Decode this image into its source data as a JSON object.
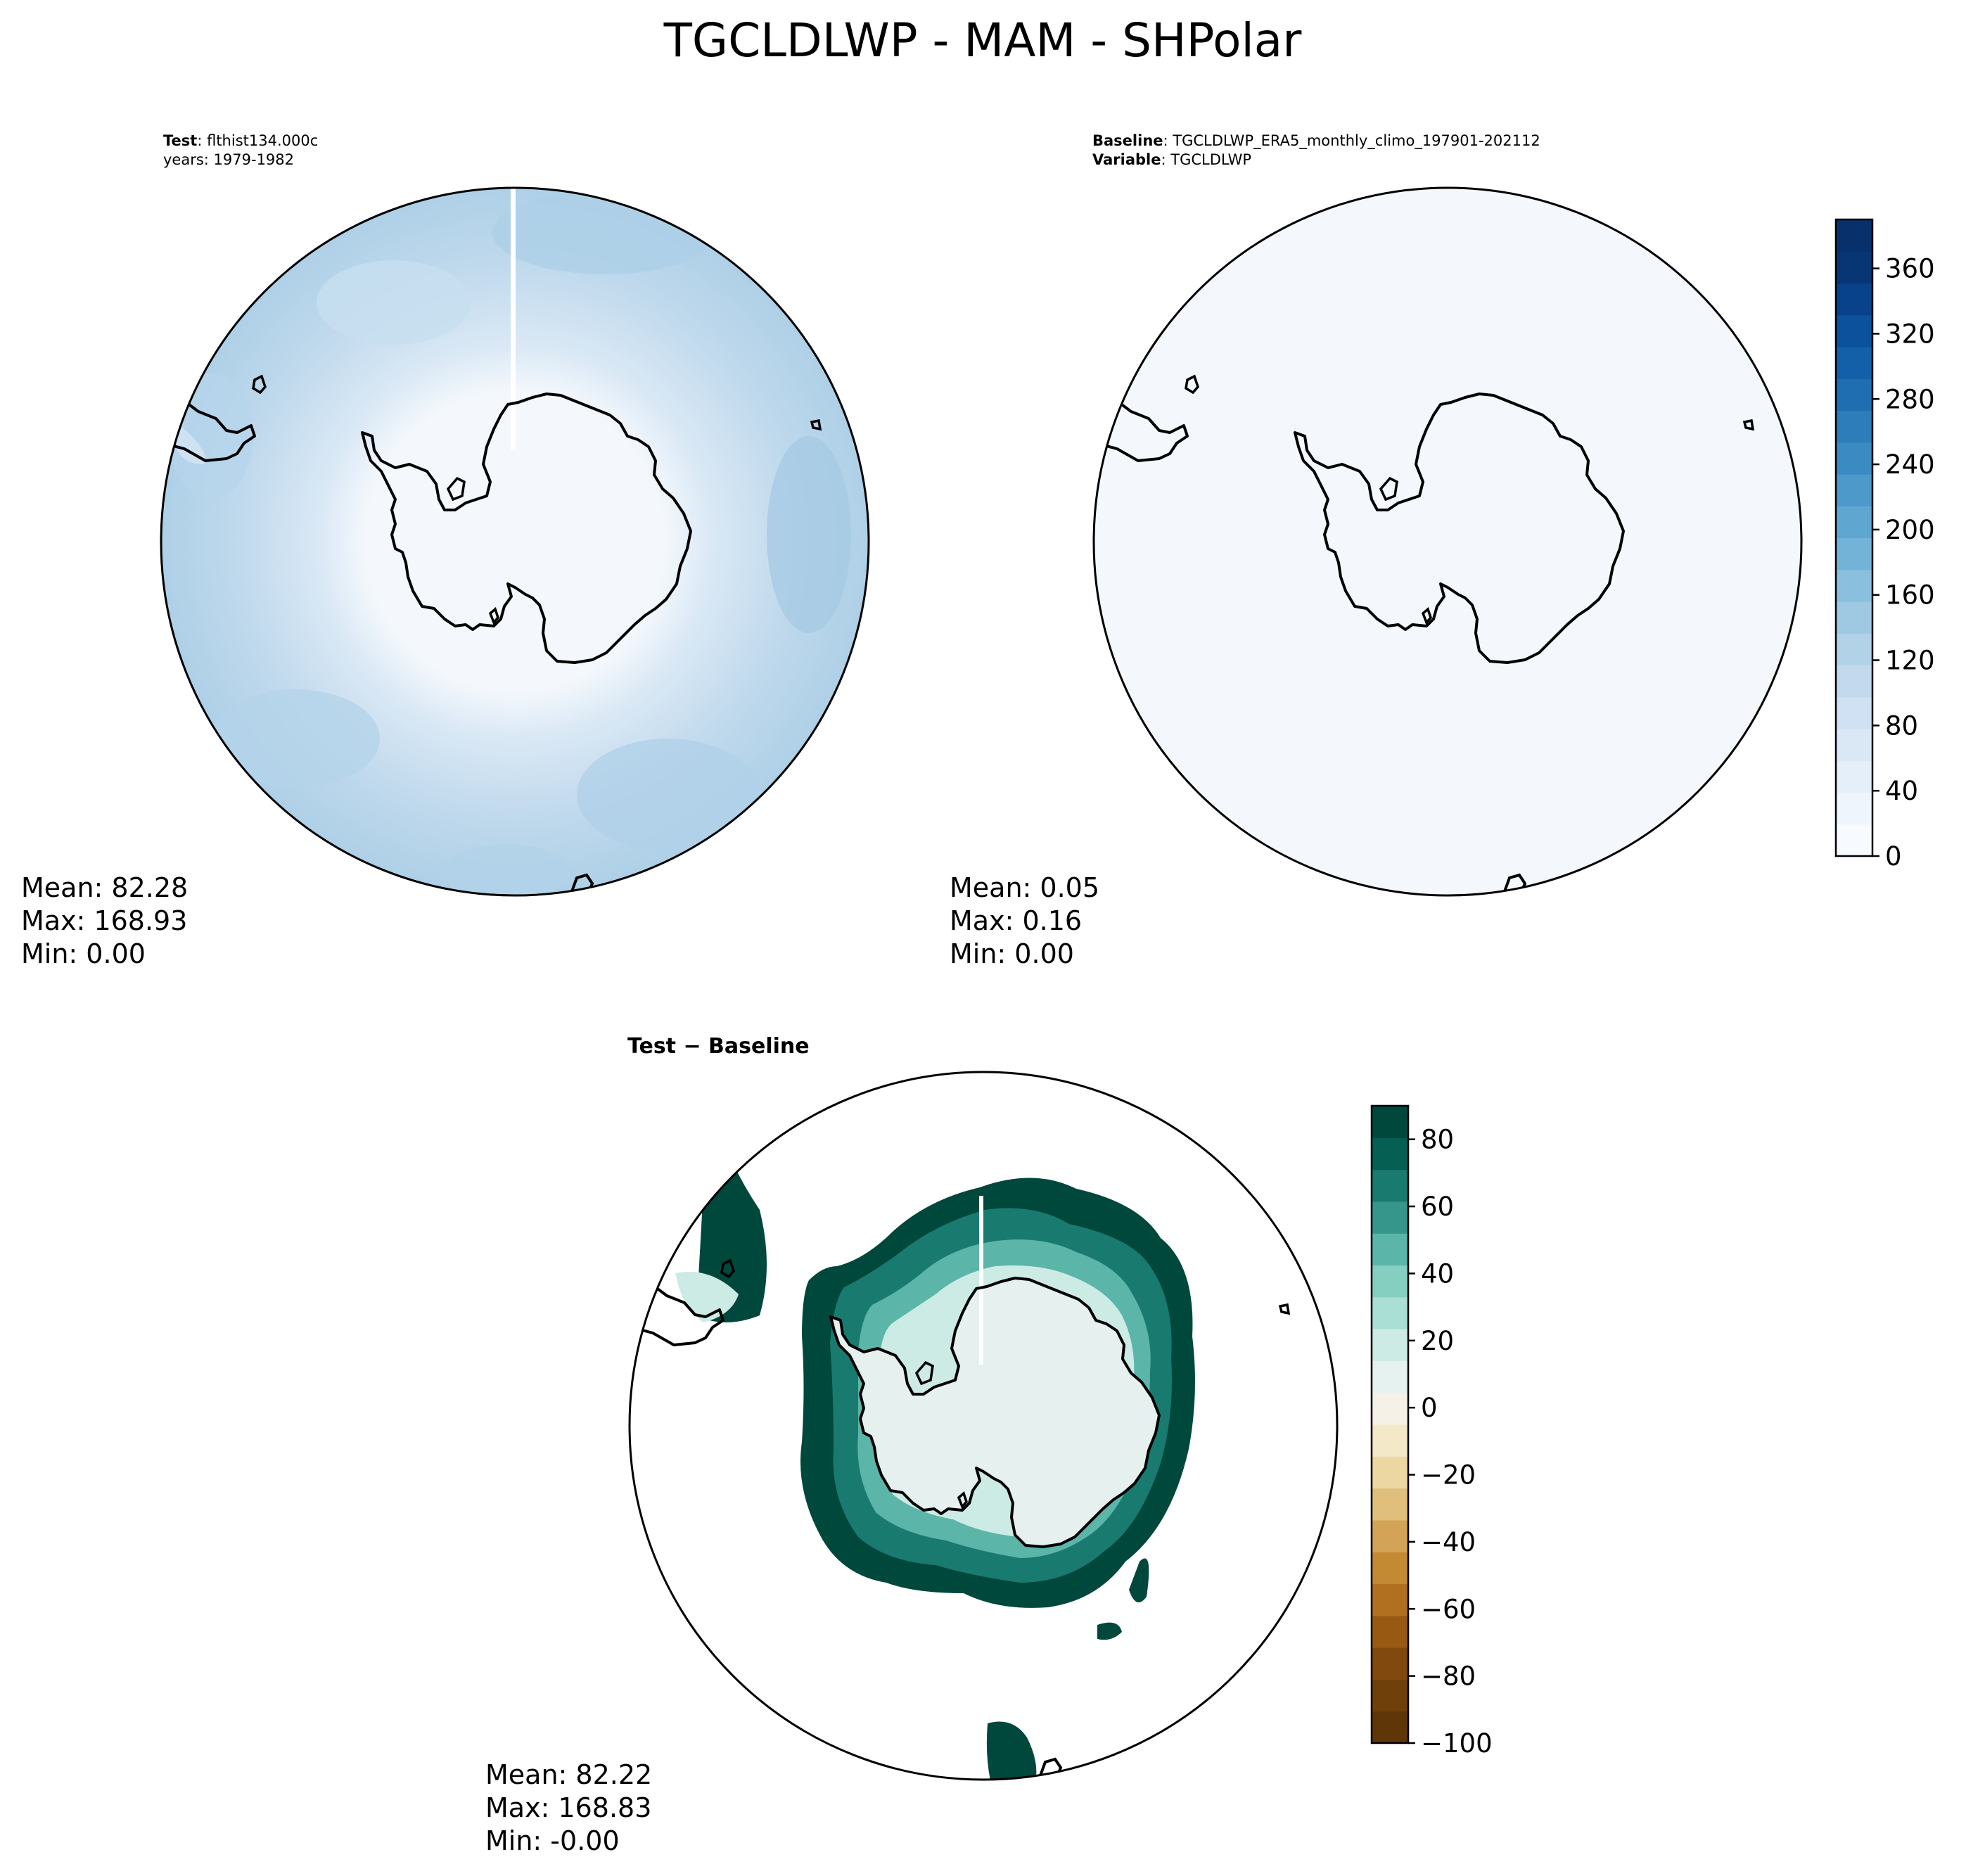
{
  "figure": {
    "title": "TGCLDLWP - MAM - SHPolar"
  },
  "panels": {
    "test": {
      "header": {
        "key": "Test",
        "value": "flthist134.000c",
        "line2": "years: 1979-1982"
      },
      "stats": {
        "mean": "Mean: 82.28",
        "max": "Max: 168.93",
        "min": "Min:  0.00"
      },
      "fill_color": "#bdd7ec"
    },
    "baseline": {
      "header": {
        "key": "Baseline",
        "value": "TGCLDLWP_ERA5_monthly_climo_197901-202112",
        "key2": "Variable",
        "value2": "TGCLDLWP"
      },
      "stats": {
        "mean": "Mean:  0.05",
        "max": "Max:  0.16",
        "min": "Min:  0.00"
      },
      "fill_color": "#f4f8fc"
    },
    "difference": {
      "header": {
        "title": "Test − Baseline"
      },
      "stats": {
        "mean": "Mean: 82.22",
        "max": "Max: 168.83",
        "min": "Min: -0.00"
      }
    }
  },
  "colorbars": {
    "field": {
      "colormap": "Blues",
      "range": [
        0,
        390
      ],
      "ticks": [
        0,
        40,
        80,
        120,
        160,
        200,
        240,
        280,
        320,
        360
      ],
      "tick_labels": [
        "0",
        "40",
        "80",
        "120",
        "160",
        "200",
        "240",
        "280",
        "320",
        "360"
      ],
      "colors": [
        "#f7fbff",
        "#eef5fc",
        "#e4eff9",
        "#dae8f6",
        "#cfe1f2",
        "#c2d9ee",
        "#b2d2e8",
        "#9fc9e2",
        "#8abfdd",
        "#74b3d8",
        "#5fa6d1",
        "#4c99ca",
        "#3b8bc2",
        "#2d7dbb",
        "#1f6eb2",
        "#1460a8",
        "#0b519b",
        "#08428a",
        "#083573",
        "#08306b"
      ]
    },
    "diff": {
      "colormap": "BrBG",
      "range": [
        -100,
        90
      ],
      "ticks": [
        -100,
        -80,
        -60,
        -40,
        -20,
        0,
        20,
        40,
        60,
        80
      ],
      "tick_labels": [
        "−100",
        "−80",
        "−60",
        "−40",
        "−20",
        "0",
        "20",
        "40",
        "60",
        "80"
      ],
      "colors": [
        "#5e3607",
        "#6f400a",
        "#81490d",
        "#985a13",
        "#b0701f",
        "#c48a33",
        "#d3a458",
        "#e0bf7c",
        "#ecd7a2",
        "#f3e8c8",
        "#f5f1e6",
        "#e6f2f0",
        "#cdebe5",
        "#aadfd5",
        "#85cfc1",
        "#5bb5a8",
        "#36968c",
        "#197a70",
        "#065f53",
        "#01483c"
      ]
    }
  }
}
